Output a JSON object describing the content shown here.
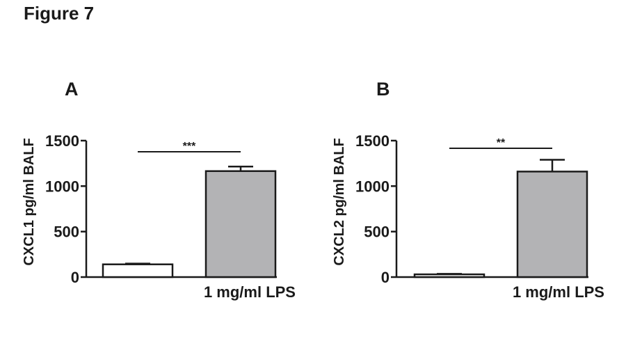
{
  "figure_title": "Figure 7",
  "colors": {
    "control_bar": "#ffffff",
    "lps_bar": "#b3b3b5",
    "ink": "#1a1a1a"
  },
  "chart_data": [
    {
      "type": "bar",
      "panel": "A",
      "ylabel": "CXCL1 pg/ml BALF",
      "ylim": [
        0,
        1500
      ],
      "yticks": [
        0,
        500,
        1000,
        1500
      ],
      "categories": [
        "",
        "1 mg/ml LPS"
      ],
      "values": [
        140,
        1165
      ],
      "errors": [
        8,
        50
      ],
      "significance": "***"
    },
    {
      "type": "bar",
      "panel": "B",
      "ylabel": "CXCL2 pg/ml BALF",
      "ylim": [
        0,
        1500
      ],
      "yticks": [
        0,
        500,
        1000,
        1500
      ],
      "categories": [
        "",
        "1 mg/ml LPS"
      ],
      "values": [
        30,
        1160
      ],
      "errors": [
        5,
        130
      ],
      "significance": "**"
    }
  ]
}
